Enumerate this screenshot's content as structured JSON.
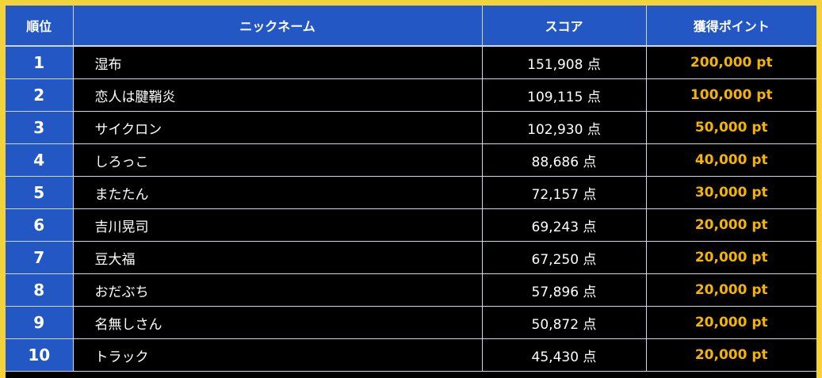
{
  "colors": {
    "frame": "#f4d33a",
    "header_bg": "#2357c4",
    "rank_bg": "#2357c4",
    "row_bg": "#000000",
    "points_text": "#f5b400",
    "grid": "#cfd8ea"
  },
  "table": {
    "headers": {
      "rank": "順位",
      "nickname": "ニックネーム",
      "score": "スコア",
      "points": "獲得ポイント"
    },
    "rows": [
      {
        "rank": "1",
        "nickname": "湿布",
        "score": "151,908 点",
        "points": "200,000 pt"
      },
      {
        "rank": "2",
        "nickname": "恋人は腱鞘炎",
        "score": "109,115 点",
        "points": "100,000 pt"
      },
      {
        "rank": "3",
        "nickname": "サイクロン",
        "score": "102,930 点",
        "points": "50,000 pt"
      },
      {
        "rank": "4",
        "nickname": "しろっこ",
        "score": "88,686 点",
        "points": "40,000 pt"
      },
      {
        "rank": "5",
        "nickname": "またたん",
        "score": "72,157 点",
        "points": "30,000 pt"
      },
      {
        "rank": "6",
        "nickname": "吉川晃司",
        "score": "69,243 点",
        "points": "20,000 pt"
      },
      {
        "rank": "7",
        "nickname": "豆大福",
        "score": "67,250 点",
        "points": "20,000 pt"
      },
      {
        "rank": "8",
        "nickname": "おだぶち",
        "score": "57,896 点",
        "points": "20,000 pt"
      },
      {
        "rank": "9",
        "nickname": "名無しさん",
        "score": "50,872 点",
        "points": "20,000 pt"
      },
      {
        "rank": "10",
        "nickname": "トラック",
        "score": "45,430 点",
        "points": "20,000 pt"
      }
    ]
  }
}
